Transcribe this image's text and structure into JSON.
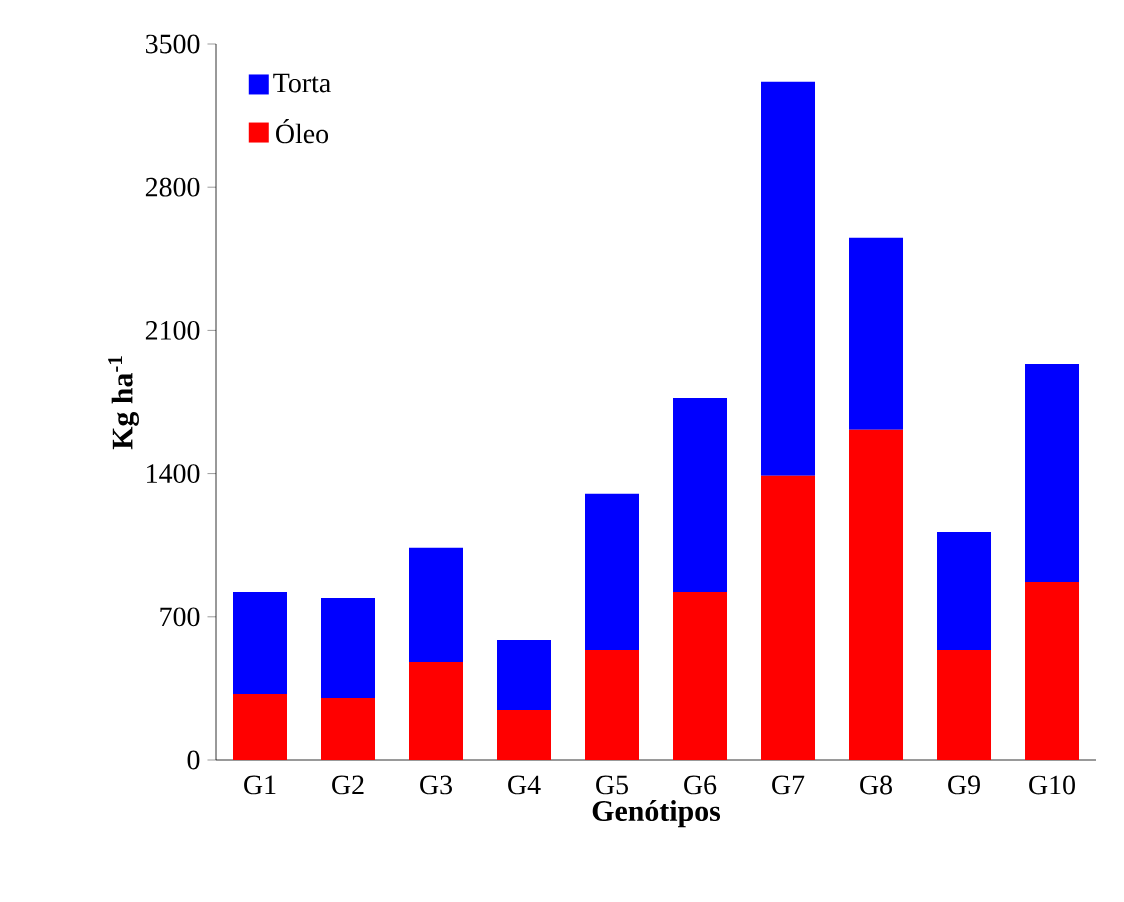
{
  "chart_data": {
    "type": "bar",
    "stacked": true,
    "xlabel": "Genótipos",
    "ylabel": "Kg ha$^{-1}$",
    "categories": [
      "G1",
      "G2",
      "G3",
      "G4",
      "G5",
      "G6",
      "G7",
      "G8",
      "G9",
      "G10"
    ],
    "series": [
      {
        "name": "Óleo",
        "color": "#ff0000",
        "values": [
          323,
          303,
          479,
          245,
          538,
          821,
          1389,
          1614,
          538,
          870
        ]
      },
      {
        "name": "Torta",
        "color": "#0000ff",
        "values": [
          498,
          489,
          558,
          342,
          763,
          949,
          1926,
          939,
          577,
          1066
        ]
      }
    ],
    "ylim": [
      0,
      3500
    ],
    "yticks": [
      0,
      700,
      1400,
      2100,
      2800,
      3500
    ],
    "legend": "top left",
    "grid": false
  }
}
